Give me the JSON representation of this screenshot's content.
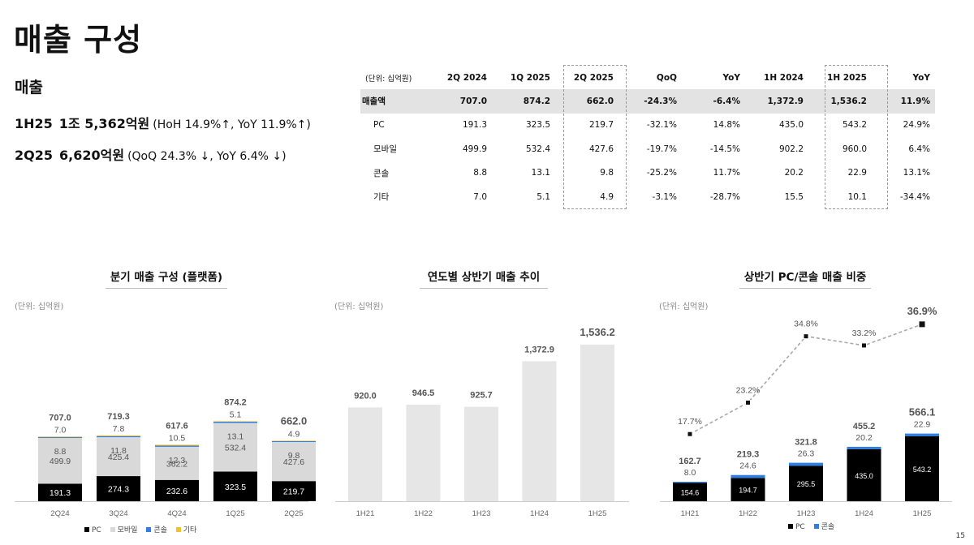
{
  "page": {
    "title": "매출 구성",
    "page_number": "15"
  },
  "summary": {
    "label": "매출",
    "rows": [
      {
        "period": "1H25",
        "value": "1조 5,362억원",
        "detail": "(HoH 14.9%↑, YoY 11.9%↑)"
      },
      {
        "period": "2Q25",
        "value": "6,620억원",
        "detail": "(QoQ 24.3% ↓, YoY 6.4% ↓)"
      }
    ]
  },
  "table": {
    "unit": "(단위: 십억원)",
    "headers": [
      "2Q 2024",
      "1Q 2025",
      "2Q 2025",
      "QoQ",
      "YoY",
      "1H 2024",
      "1H 2025",
      "YoY"
    ],
    "rows": [
      {
        "label": "매출액",
        "values": [
          "707.0",
          "874.2",
          "662.0",
          "-24.3%",
          "-6.4%",
          "1,372.9",
          "1,536.2",
          "11.9%"
        ]
      },
      {
        "label": "PC",
        "values": [
          "191.3",
          "323.5",
          "219.7",
          "-32.1%",
          "14.8%",
          "435.0",
          "543.2",
          "24.9%"
        ]
      },
      {
        "label": "모바일",
        "values": [
          "499.9",
          "532.4",
          "427.6",
          "-19.7%",
          "-14.5%",
          "902.2",
          "960.0",
          "6.4%"
        ]
      },
      {
        "label": "콘솔",
        "values": [
          "8.8",
          "13.1",
          "9.8",
          "-25.2%",
          "11.7%",
          "20.2",
          "22.9",
          "13.1%"
        ]
      },
      {
        "label": "기타",
        "values": [
          "7.0",
          "5.1",
          "4.9",
          "-3.1%",
          "-28.7%",
          "15.5",
          "10.1",
          "-34.4%"
        ]
      }
    ]
  },
  "chart_data": [
    {
      "type": "bar",
      "stacked": true,
      "title": "분기 매출 구성 (플랫폼)",
      "unit": "(단위: 십억원)",
      "categories": [
        "2Q24",
        "3Q24",
        "4Q24",
        "1Q25",
        "2Q25"
      ],
      "series": [
        {
          "name": "PC",
          "values": [
            191.3,
            274.3,
            232.6,
            323.5,
            219.7
          ]
        },
        {
          "name": "모바일",
          "values": [
            499.9,
            425.4,
            362.2,
            532.4,
            427.6
          ]
        },
        {
          "name": "콘솔",
          "values": [
            8.8,
            11.8,
            12.3,
            13.1,
            9.8
          ]
        },
        {
          "name": "기타",
          "values": [
            7.0,
            7.8,
            10.5,
            5.1,
            4.9
          ]
        }
      ],
      "totals": [
        707.0,
        719.3,
        617.6,
        874.2,
        662.0
      ],
      "colors": {
        "PC": "#000000",
        "모바일": "#d9d9d9",
        "콘솔": "#2f7ee0",
        "기타": "#f2c12e"
      },
      "legend_position": "bottom"
    },
    {
      "type": "bar",
      "title": "연도별 상반기 매출 추이",
      "unit": "(단위: 십억원)",
      "categories": [
        "1H21",
        "1H22",
        "1H23",
        "1H24",
        "1H25"
      ],
      "values": [
        920.0,
        946.5,
        925.7,
        1372.9,
        1536.2
      ],
      "colors": {
        "bar": "#e6e6e6"
      }
    },
    {
      "type": "bar",
      "stacked": true,
      "title": "상반기 PC/콘솔 매출 비중",
      "unit": "(단위: 십억원)",
      "categories": [
        "1H21",
        "1H22",
        "1H23",
        "1H24",
        "1H25"
      ],
      "series": [
        {
          "name": "PC",
          "values": [
            154.6,
            194.7,
            295.5,
            435.0,
            543.2
          ]
        },
        {
          "name": "콘솔",
          "values": [
            8.0,
            24.6,
            26.3,
            20.2,
            22.9
          ]
        }
      ],
      "totals": [
        162.7,
        219.3,
        321.8,
        455.2,
        566.1
      ],
      "share_line": {
        "values": [
          17.7,
          23.2,
          34.8,
          33.2,
          36.9
        ],
        "labels": [
          "17.7%",
          "23.2%",
          "34.8%",
          "33.2%",
          "36.9%"
        ]
      },
      "colors": {
        "PC": "#000000",
        "콘솔": "#2f7ee0",
        "line": "#a8a8a8"
      },
      "legend_position": "bottom"
    }
  ]
}
